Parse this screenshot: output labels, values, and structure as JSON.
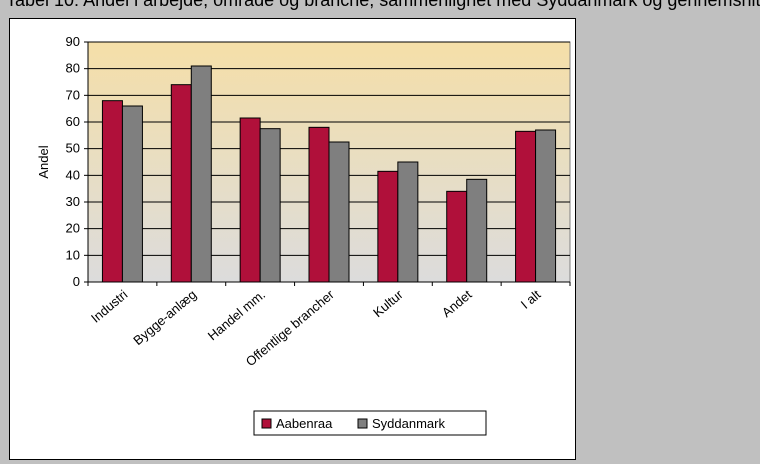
{
  "header": {
    "title": "Tabel 10: Andel i arbejde, område og branche, sammenlignet med Syddanmark og gennemsnit"
  },
  "chart_data": {
    "type": "bar",
    "categories": [
      "Industri",
      "Bygge-anlæg",
      "Handel mm.",
      "Offentlige brancher",
      "Kultur",
      "Andet",
      "I alt"
    ],
    "series": [
      {
        "name": "Aabenraa",
        "values": [
          68,
          74,
          61.5,
          58,
          41.5,
          34,
          56.5
        ],
        "color": "#b0103a"
      },
      {
        "name": "Syddanmark",
        "values": [
          66,
          81,
          57.5,
          52.5,
          45,
          38.5,
          57
        ],
        "color": "#7f7f7f"
      }
    ],
    "xlabel": "",
    "ylabel": "Andel",
    "ylim": [
      0,
      90
    ],
    "yticks": [
      "0",
      "10",
      "20",
      "30",
      "40",
      "50",
      "60",
      "70",
      "80",
      "90"
    ],
    "grid": true,
    "legend": "bottom-center"
  }
}
